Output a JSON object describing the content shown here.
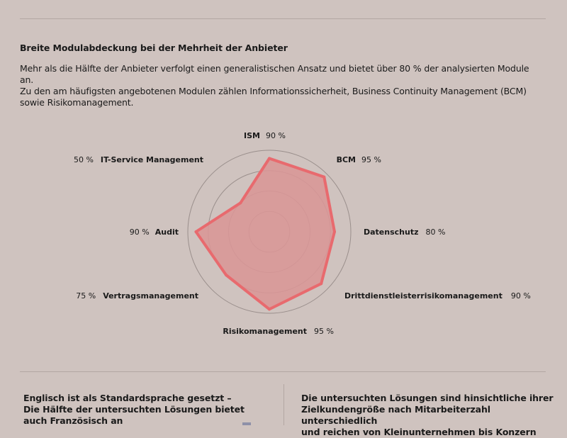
{
  "section": {
    "heading": "Breite Modulabdeckung bei der Mehrheit der Anbieter",
    "para_lines": [
      "Mehr als die Hälfte der Anbieter verfolgt einen generalistischen Ansatz und bietet über 80 % der analysierten Module an.",
      "Zu den am häufigsten angebotenen Modulen zählen Informationssicherheit, Business Continuity Management (BCM)",
      "sowie Risikomanagement."
    ]
  },
  "chart_data": {
    "type": "radar",
    "unit": "%",
    "rlim": [
      0,
      100
    ],
    "rings": 4,
    "categories": [
      "ISM",
      "BCM",
      "Datenschutz",
      "Drittdienstleisterrisikomanagement",
      "Risikomanagement",
      "Vertragsmanagement",
      "Audit",
      "IT-Service Management"
    ],
    "values": [
      90,
      95,
      80,
      90,
      95,
      75,
      90,
      50
    ],
    "value_labels": [
      "90 %",
      "95 %",
      "80 %",
      "90 %",
      "95 %",
      "75 %",
      "90 %",
      "50 %"
    ],
    "colors": {
      "fill": "#d99696",
      "stroke": "#e86a6e",
      "rings": "#9a8f8c"
    }
  },
  "footer": {
    "left_lines": [
      "Englisch ist als Standardsprache gesetzt –",
      "Die Hälfte der untersuchten Lösungen bietet",
      "auch Französisch an"
    ],
    "right_lines": [
      "Die untersuchten Lösungen sind hinsichtliche ihrer",
      "Zielkundengröße nach Mitarbeiterzahl unterschiedlich",
      "und reichen von Kleinunternehmen bis Konzern"
    ]
  },
  "colors": {
    "background": "#cfc3bf",
    "accent": "#e86a6e"
  }
}
